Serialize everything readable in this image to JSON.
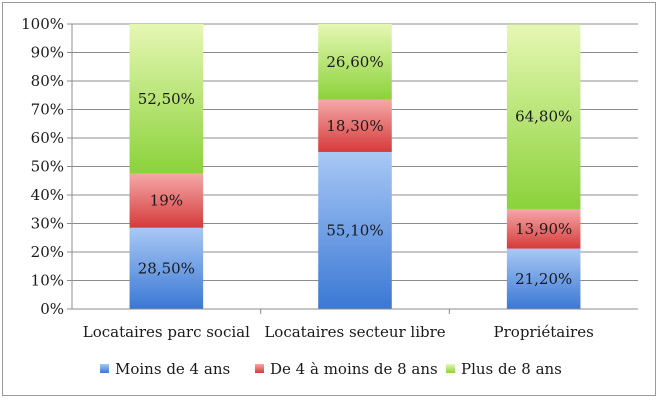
{
  "chart_data": {
    "type": "bar",
    "stacked": true,
    "categories": [
      "Locataires parc social",
      "Locataires secteur libre",
      "Propriétaires"
    ],
    "ylim": [
      0,
      100
    ],
    "yticks": [
      "0%",
      "10%",
      "20%",
      "30%",
      "40%",
      "50%",
      "60%",
      "70%",
      "80%",
      "90%",
      "100%"
    ],
    "grid": true,
    "legend_position": "bottom",
    "series": [
      {
        "name": "Moins de 4 ans",
        "values": [
          28.5,
          55.1,
          21.2
        ],
        "labels": [
          "28,50%",
          "55,10%",
          "21,20%"
        ],
        "color_top": "#a9c8f5",
        "color_bottom": "#3a78d4"
      },
      {
        "name": "De 4 à moins de 8 ans",
        "values": [
          19.0,
          18.3,
          13.9
        ],
        "labels": [
          "19%",
          "18,30%",
          "13,90%"
        ],
        "color_top": "#f5a8a8",
        "color_bottom": "#d63a3a"
      },
      {
        "name": "Plus de 8 ans",
        "values": [
          52.5,
          26.6,
          64.8
        ],
        "labels": [
          "52,50%",
          "26,60%",
          "64,80%"
        ],
        "color_top": "#e6f7b4",
        "color_bottom": "#8bd23a"
      }
    ]
  }
}
